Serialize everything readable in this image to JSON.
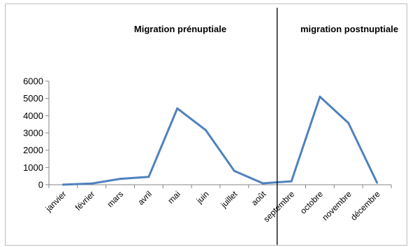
{
  "chart_data": {
    "type": "line",
    "categories": [
      "janvier",
      "février",
      "mars",
      "avril",
      "mai",
      "juin",
      "juillet",
      "août",
      "septembre",
      "octobre",
      "novembre",
      "décembre"
    ],
    "series": [
      {
        "values": [
          5,
          70,
          340,
          460,
          4420,
          3160,
          800,
          80,
          200,
          5100,
          3570,
          120
        ]
      }
    ],
    "yticks": [
      0,
      1000,
      2000,
      3000,
      4000,
      5000,
      6000
    ],
    "ylim": [
      0,
      6000
    ],
    "grid": false,
    "legend": "none",
    "line_color": "#4f81bd",
    "divider_after_category": "août",
    "annotations": [
      {
        "id": "pre",
        "text": "Migration prénuptiale"
      },
      {
        "id": "post",
        "text": "migration postnuptiale"
      }
    ]
  }
}
